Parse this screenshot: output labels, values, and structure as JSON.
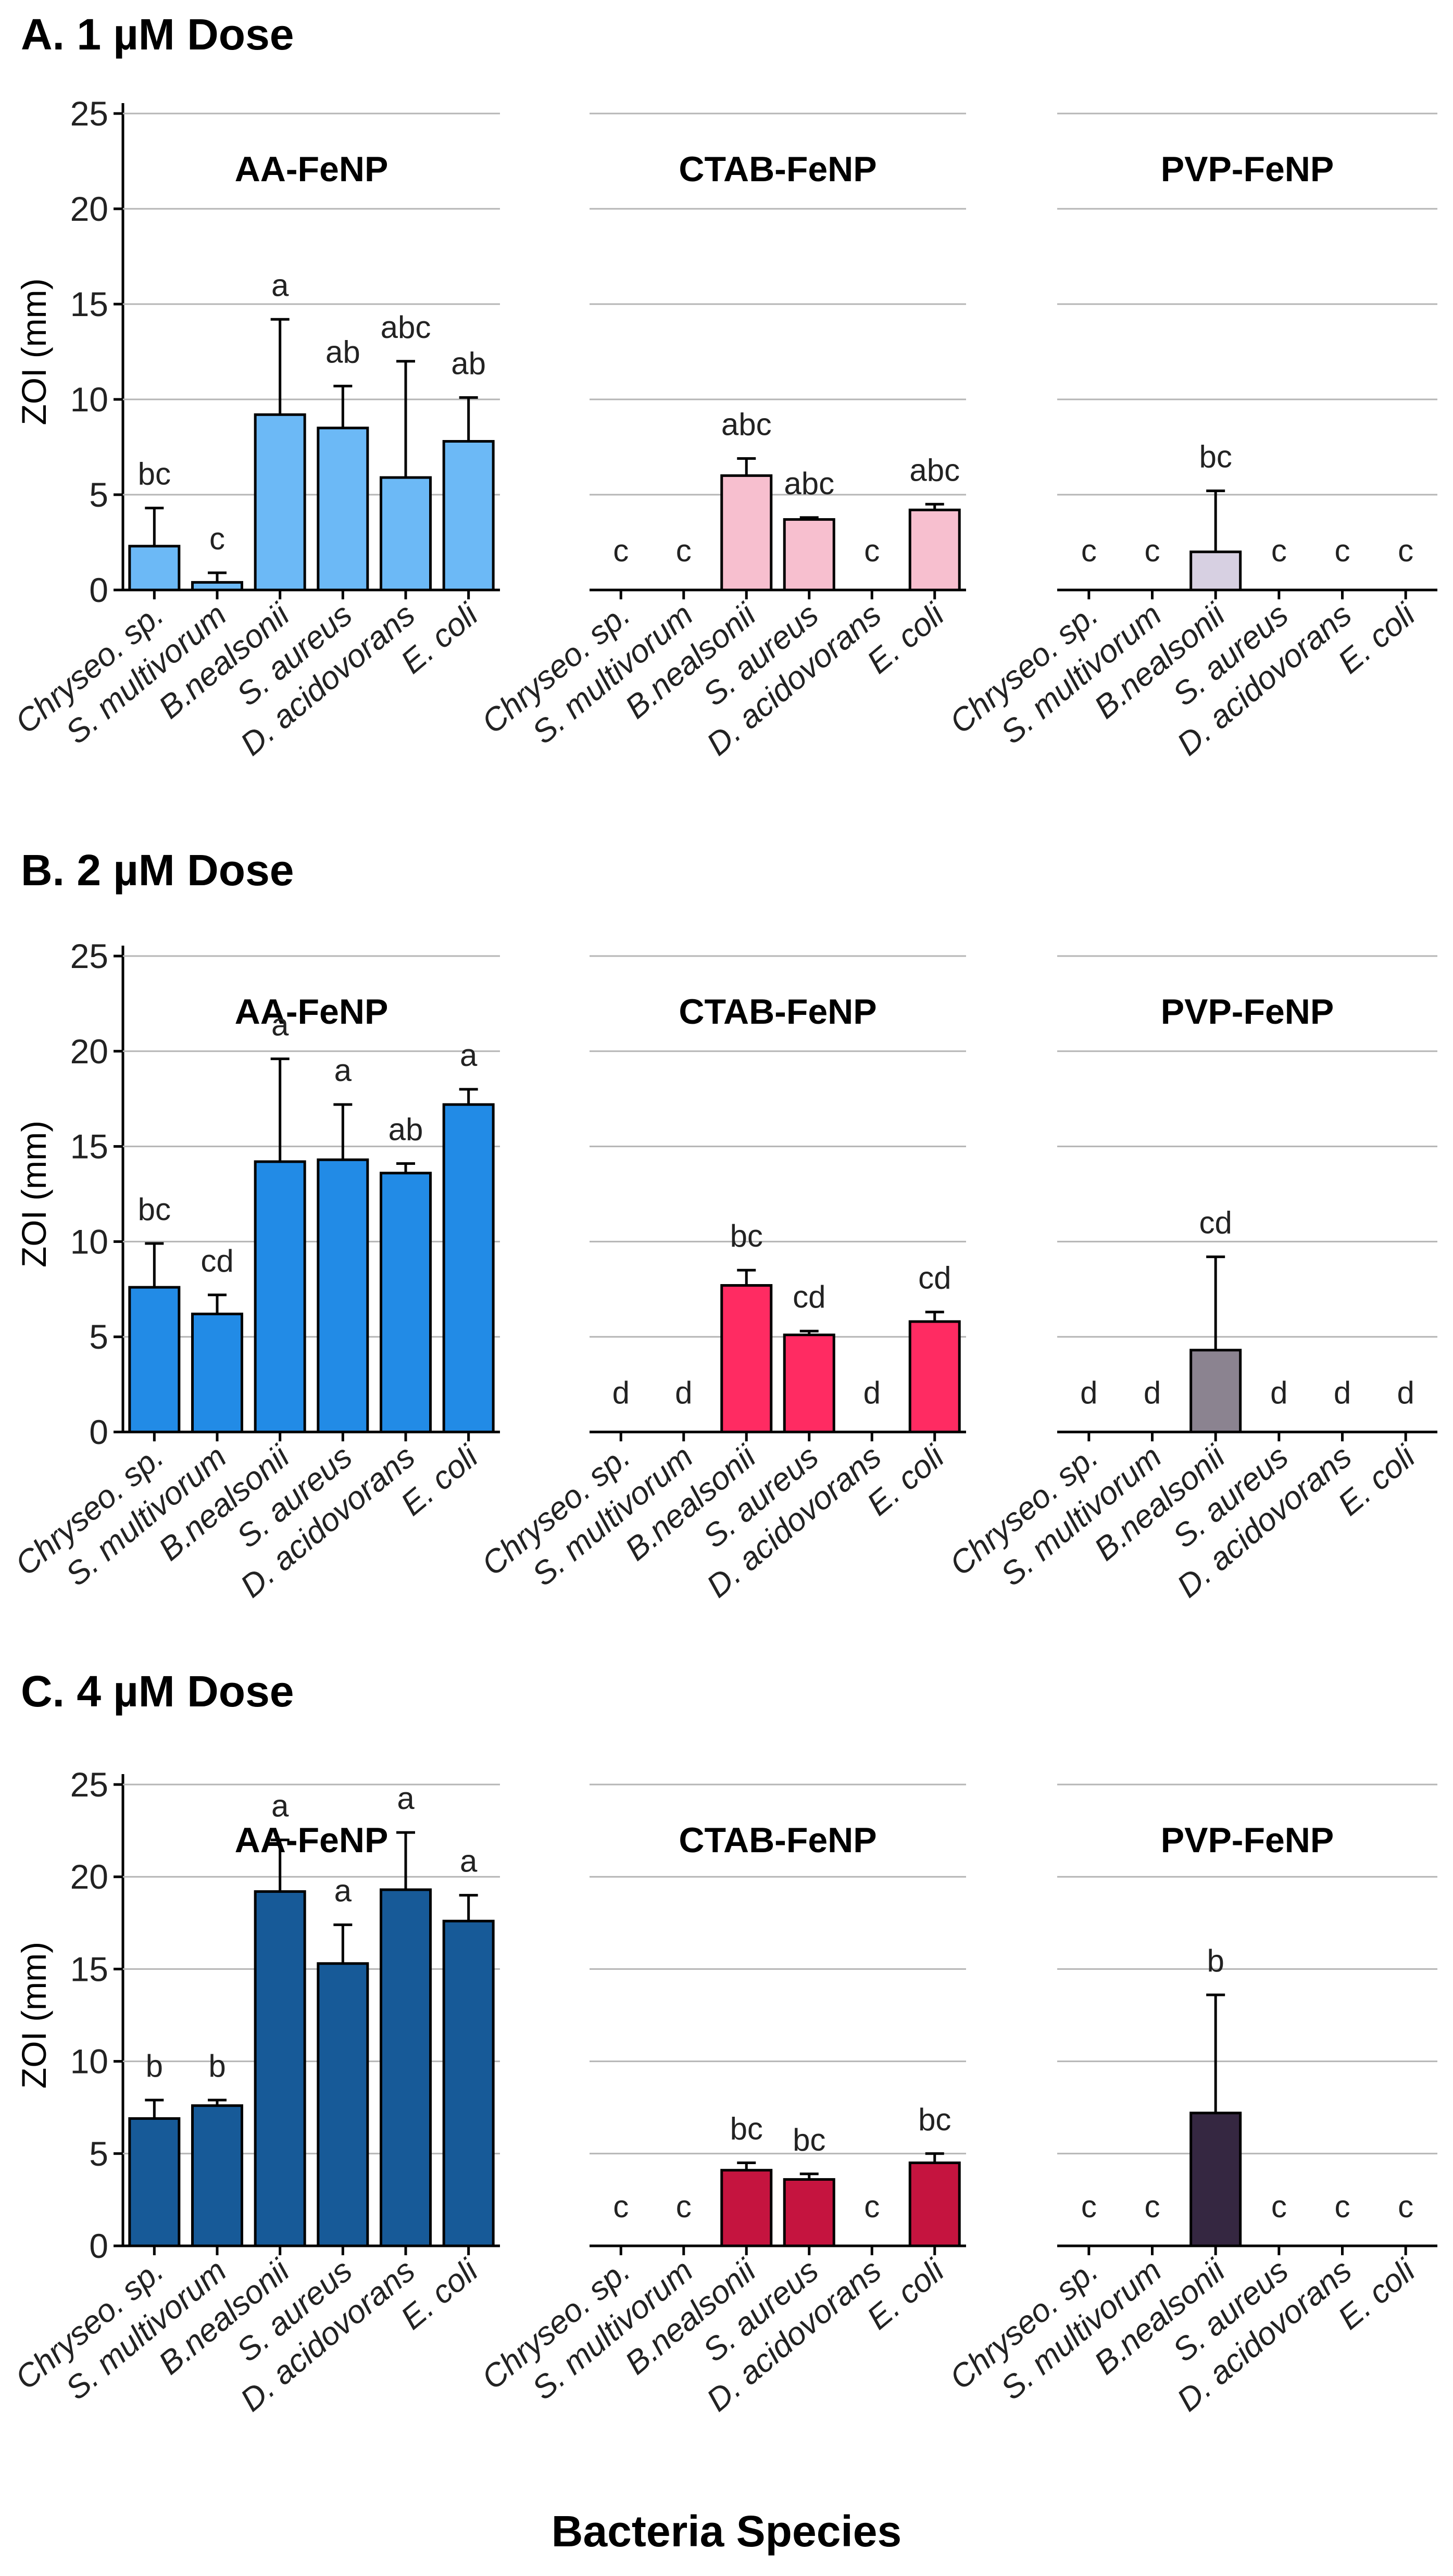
{
  "chart_data": {
    "type": "bar",
    "xlabel": "Bacteria Species",
    "ylabel": "ZOI (mm)",
    "ylim": [
      0,
      25
    ],
    "yticks": [
      0,
      5,
      10,
      15,
      20,
      25
    ],
    "grid": true,
    "categories": [
      "Chryseo. sp.",
      "S. multivorum",
      "B.nealsonii",
      "S. aureus",
      "D. acidovorans",
      "E. coli"
    ],
    "doses": [
      {
        "title": "A. 1 µM Dose",
        "panels": [
          {
            "title": "AA-FeNP",
            "color": "#6cb9f6",
            "values": [
              2.3,
              0.4,
              9.2,
              8.5,
              5.9,
              7.8
            ],
            "errors": [
              2.0,
              0.5,
              5.0,
              2.2,
              6.1,
              2.3
            ],
            "letters": [
              "bc",
              "c",
              "a",
              "ab",
              "abc",
              "ab"
            ]
          },
          {
            "title": "CTAB-FeNP",
            "color": "#f7bfcf",
            "values": [
              0,
              0,
              6.0,
              3.7,
              0,
              4.2
            ],
            "errors": [
              0,
              0,
              0.9,
              0.1,
              0,
              0.3
            ],
            "letters": [
              "c",
              "c",
              "abc",
              "abc",
              "c",
              "abc"
            ]
          },
          {
            "title": "PVP-FeNP",
            "color": "#d7d0e2",
            "values": [
              0,
              0,
              2.0,
              0,
              0,
              0
            ],
            "errors": [
              0,
              0,
              3.2,
              0,
              0,
              0
            ],
            "letters": [
              "c",
              "c",
              "bc",
              "c",
              "c",
              "c"
            ]
          }
        ]
      },
      {
        "title": "B. 2 µM Dose",
        "panels": [
          {
            "title": "AA-FeNP",
            "color": "#228be6",
            "values": [
              7.6,
              6.2,
              14.2,
              14.3,
              13.6,
              17.2
            ],
            "errors": [
              2.3,
              1.0,
              5.4,
              2.9,
              0.5,
              0.8
            ],
            "letters": [
              "bc",
              "cd",
              "a",
              "a",
              "ab",
              "a"
            ]
          },
          {
            "title": "CTAB-FeNP",
            "color": "#ff2b62",
            "values": [
              0,
              0,
              7.7,
              5.1,
              0,
              5.8
            ],
            "errors": [
              0,
              0,
              0.8,
              0.2,
              0,
              0.5
            ],
            "letters": [
              "d",
              "d",
              "bc",
              "cd",
              "d",
              "cd"
            ]
          },
          {
            "title": "PVP-FeNP",
            "color": "#8b8390",
            "values": [
              0,
              0,
              4.3,
              0,
              0,
              0
            ],
            "errors": [
              0,
              0,
              4.9,
              0,
              0,
              0
            ],
            "letters": [
              "d",
              "d",
              "cd",
              "d",
              "d",
              "d"
            ]
          }
        ]
      },
      {
        "title": "C. 4 µM Dose",
        "panels": [
          {
            "title": "AA-FeNP",
            "color": "#175a98",
            "values": [
              6.9,
              7.6,
              19.2,
              15.3,
              19.3,
              17.6
            ],
            "errors": [
              1.0,
              0.3,
              2.8,
              2.1,
              3.1,
              1.4
            ],
            "letters": [
              "b",
              "b",
              "a",
              "a",
              "a",
              "a"
            ]
          },
          {
            "title": "CTAB-FeNP",
            "color": "#c5143f",
            "values": [
              0,
              0,
              4.1,
              3.6,
              0,
              4.5
            ],
            "errors": [
              0,
              0,
              0.4,
              0.3,
              0,
              0.5
            ],
            "letters": [
              "c",
              "c",
              "bc",
              "bc",
              "c",
              "bc"
            ]
          },
          {
            "title": "PVP-FeNP",
            "color": "#352741",
            "values": [
              0,
              0,
              7.2,
              0,
              0,
              0
            ],
            "errors": [
              0,
              0,
              6.4,
              0,
              0,
              0
            ],
            "letters": [
              "c",
              "c",
              "b",
              "c",
              "c",
              "c"
            ]
          }
        ]
      }
    ]
  }
}
